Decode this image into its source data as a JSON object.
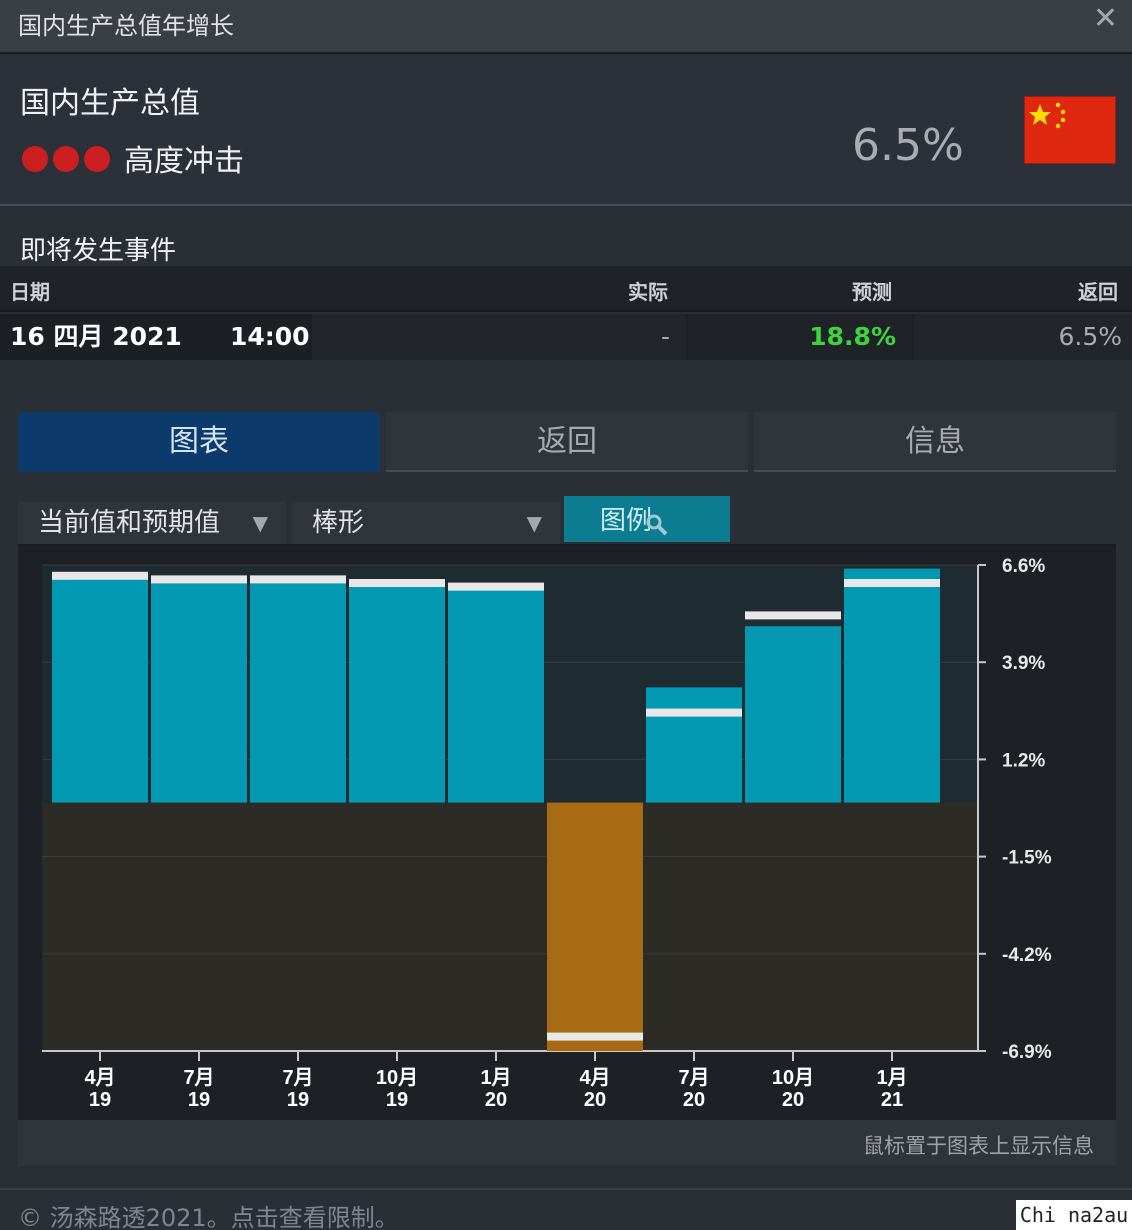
{
  "window": {
    "title": "国内生产总值年增长",
    "close_glyph": "✕"
  },
  "indicator": {
    "name": "国内生产总值",
    "impact_label": "高度冲击",
    "impact_level": 3,
    "impact_color": "#cc1f1f",
    "value": "6.5%",
    "flag": "china-flag"
  },
  "events": {
    "title": "即将发生事件",
    "headers": {
      "date": "日期",
      "actual": "实际",
      "forecast": "预测",
      "previous": "返回"
    },
    "rows": [
      {
        "date": "16 四月 2021",
        "time": "14:00",
        "actual": "-",
        "forecast": "18.8%",
        "previous": "6.5%"
      }
    ]
  },
  "tabs": [
    {
      "label": "图表",
      "active": true
    },
    {
      "label": "返回",
      "active": false
    },
    {
      "label": "信息",
      "active": false
    }
  ],
  "controls": {
    "series_select": "当前值和预期值",
    "type_select": "棒形",
    "legend_button": "图例",
    "dropdown_arrow": "▼"
  },
  "chart_data": {
    "type": "bar",
    "categories": [
      [
        "4月",
        "19"
      ],
      [
        "7月",
        "19"
      ],
      [
        "7月",
        "19"
      ],
      [
        "10月",
        "19"
      ],
      [
        "1月",
        "20"
      ],
      [
        "4月",
        "20"
      ],
      [
        "7月",
        "20"
      ],
      [
        "10月",
        "20"
      ],
      [
        "1月",
        "21"
      ]
    ],
    "series": [
      {
        "values": [
          6.4,
          6.3,
          6.3,
          6.2,
          6.1,
          -6.9,
          3.2,
          4.9,
          6.5
        ]
      },
      {
        "values": [
          6.3,
          6.2,
          6.2,
          6.1,
          6.0,
          -6.5,
          2.5,
          5.2,
          6.1
        ]
      }
    ],
    "ylim": [
      -6.9,
      6.6
    ],
    "yticks": [
      "6.6%",
      "3.9%",
      "1.2%",
      "-1.5%",
      "-4.2%",
      "-6.9%"
    ],
    "positive_color": "#0499b3",
    "negative_color": "#a86a12",
    "forecast_marker_color": "#e8e8e8",
    "grid": true
  },
  "hint": "鼠标置于图表上显示信息",
  "footer": {
    "copyright": "© 汤森路透2021。点击查看限制。"
  },
  "watermark": "Chi na2au"
}
